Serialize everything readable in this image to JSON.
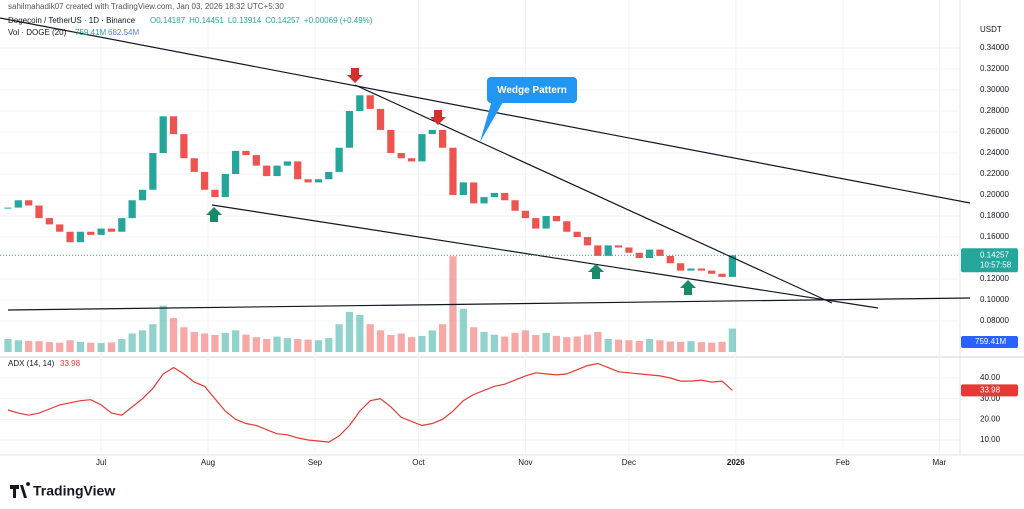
{
  "header": {
    "watermark": "sahilmahadik07 created with TradingView.com, Jan 03, 2026 18:32 UTC+5:30",
    "symbol": "Dogecoin / TetherUS · 1D · Binance",
    "ohlc": [
      "O0.14187",
      "H0.14451",
      "L0.13914",
      "C0.14257",
      "+0.00069 (+0.49%)"
    ],
    "logo": "TradingView"
  },
  "chart_data": {
    "type": "candlestick",
    "currency": "USDT",
    "up_color": "#26a69a",
    "down_color": "#ef5350",
    "closes": [
      0.188,
      0.195,
      0.19,
      0.178,
      0.172,
      0.165,
      0.155,
      0.165,
      0.162,
      0.168,
      0.165,
      0.178,
      0.195,
      0.205,
      0.24,
      0.275,
      0.258,
      0.235,
      0.222,
      0.205,
      0.198,
      0.22,
      0.242,
      0.238,
      0.228,
      0.218,
      0.228,
      0.232,
      0.215,
      0.212,
      0.215,
      0.222,
      0.245,
      0.28,
      0.295,
      0.282,
      0.262,
      0.24,
      0.235,
      0.232,
      0.258,
      0.262,
      0.245,
      0.2,
      0.212,
      0.192,
      0.198,
      0.202,
      0.195,
      0.185,
      0.178,
      0.168,
      0.18,
      0.175,
      0.165,
      0.16,
      0.152,
      0.142,
      0.152,
      0.15,
      0.145,
      0.14,
      0.148,
      0.142,
      0.135,
      0.128,
      0.13,
      0.128,
      0.125,
      0.122,
      0.14257
    ],
    "countdown": "10:57:58",
    "xlim": [
      -0.77,
      91.8
    ],
    "xticks": [
      {
        "value": 9,
        "label": "Jul"
      },
      {
        "value": 19.33,
        "label": "Aug"
      },
      {
        "value": 29.67,
        "label": "Sep"
      },
      {
        "value": 39.67,
        "label": "Oct"
      },
      {
        "value": 50,
        "label": "Nov"
      },
      {
        "value": 60,
        "label": "Dec"
      },
      {
        "value": 70.33,
        "label": "2026"
      },
      {
        "value": 80.67,
        "label": "Feb"
      },
      {
        "value": 90,
        "label": "Mar"
      }
    ],
    "ylim": [
      0.0476,
      0.3667
    ],
    "yticks": [
      {
        "value": 0.34,
        "label": "0.34000"
      },
      {
        "value": 0.32,
        "label": "0.32000"
      },
      {
        "value": 0.3,
        "label": "0.30000"
      },
      {
        "value": 0.28,
        "label": "0.28000"
      },
      {
        "value": 0.26,
        "label": "0.26000"
      },
      {
        "value": 0.24,
        "label": "0.24000"
      },
      {
        "value": 0.22,
        "label": "0.22000"
      },
      {
        "value": 0.2,
        "label": "0.20000"
      },
      {
        "value": 0.18,
        "label": "0.18000"
      },
      {
        "value": 0.16,
        "label": "0.16000"
      },
      {
        "value": 0.12,
        "label": "0.12000"
      },
      {
        "value": 0.1,
        "label": "0.10000"
      },
      {
        "value": 0.08,
        "label": "0.08000"
      }
    ],
    "volume": {
      "name": "Vol · DOGE (20)",
      "legend": [
        "759.41M",
        "682.54M"
      ],
      "last_label": "759.41M",
      "lim": [
        0,
        3300
      ],
      "values": [
        420,
        380,
        360,
        350,
        320,
        300,
        380,
        330,
        300,
        290,
        310,
        420,
        600,
        700,
        900,
        1500,
        1100,
        800,
        650,
        600,
        550,
        620,
        700,
        560,
        480,
        420,
        500,
        450,
        420,
        400,
        380,
        450,
        900,
        1300,
        1200,
        900,
        700,
        550,
        600,
        480,
        520,
        700,
        900,
        3100,
        1400,
        800,
        650,
        560,
        500,
        620,
        700,
        550,
        620,
        520,
        480,
        500,
        560,
        650,
        420,
        400,
        380,
        360,
        420,
        380,
        340,
        330,
        350,
        320,
        300,
        330,
        759.41
      ]
    },
    "adx": {
      "name": "ADX (14, 14)",
      "color": "#e53935",
      "values": [
        24.5,
        23,
        22,
        23,
        25,
        27,
        28,
        29,
        29.5,
        27,
        23,
        22,
        26,
        30,
        35,
        42,
        45,
        42,
        38,
        36,
        30,
        24,
        20,
        18,
        17,
        15,
        13,
        12.5,
        11,
        10,
        9.5,
        9,
        12,
        17,
        24,
        29,
        30,
        26,
        21,
        19,
        17,
        18,
        20,
        24,
        29,
        32,
        34,
        36,
        37,
        39,
        41,
        42.5,
        42,
        41.5,
        42,
        44,
        46,
        47,
        45,
        43,
        42.5,
        42,
        41.5,
        41,
        40,
        38.5,
        38.5,
        39,
        38,
        38.5,
        33.98
      ],
      "ylim": [
        2.75,
        48.7
      ],
      "yticks": [
        {
          "value": 40,
          "label": "40.00"
        },
        {
          "value": 30,
          "label": "30.00"
        },
        {
          "value": 20,
          "label": "20.00"
        },
        {
          "value": 10,
          "label": "10.00"
        }
      ]
    },
    "annotation": "Wedge Pattern"
  }
}
